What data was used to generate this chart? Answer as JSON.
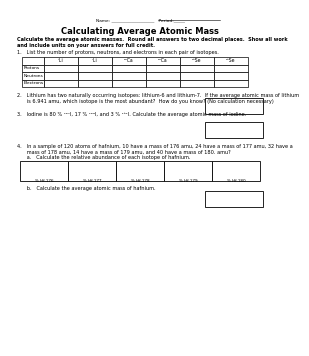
{
  "title": "Calculating Average Atomic Mass",
  "name_line_left": "Name: ",
  "name_line_right": "Period:",
  "instructions_bold": "Calculate the average atomic masses.  Round all answers to two decimal places.  Show all work\nand include units on your answers for full credit.",
  "q1_text": "1.   List the number of protons, neutrons, and electrons in each pair of isotopes.",
  "table_col_labels": [
    "⁶Li",
    "⁷Li",
    "²⁰Ca",
    "²⁰Ca",
    "²⁸Se",
    "²⁸Se"
  ],
  "table_row_labels": [
    "Protons",
    "Neutrons",
    "Electrons"
  ],
  "q2_text1": "2.   Lithium has two naturally occurring isotopes: lithium-6 and lithium-7.  If the average atomic mass of lithium",
  "q2_text2": "      is 6.941 amu, which isotope is the most abundant?  How do you know? (No calculation necessary)",
  "q3_text": "3.   Iodine is 80 % ¹²⁷I, 17 % ¹²⁹I, and 3 % ¹³¹I. Calculate the average atomic mass of iodine.",
  "q4_text1": "4.   In a sample of 120 atoms of hafnium, 10 have a mass of 176 amu, 24 have a mass of 177 amu, 32 have a",
  "q4_text2": "      mass of 178 amu, 14 have a mass of 179 amu, and 40 have a mass of 180. amu?",
  "q4a_text": "      a.   Calculate the relative abundance of each isotope of hafnium.",
  "hf_cols": [
    "% Hf-176",
    "% Hf-177",
    "% Hf-178",
    "% Hf-179",
    "% Hf-180"
  ],
  "q4b_text": "      b.   Calculate the average atomic mass of hafnium.",
  "bg_color": "#ffffff",
  "text_color": "#000000",
  "line_color": "#888888"
}
